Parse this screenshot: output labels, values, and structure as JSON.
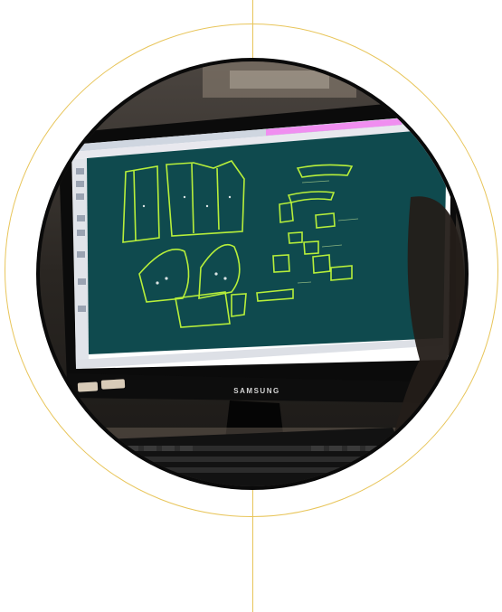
{
  "photo": {
    "subject": "cad-pattern-software-on-monitor",
    "monitor_brand": "SAMSUNG",
    "screen_bg_color": "#0f4a4e",
    "accent_color": "#e8c55a",
    "pattern_color": "#b7ef3a",
    "toolbar_highlight": "#f08ef0"
  }
}
